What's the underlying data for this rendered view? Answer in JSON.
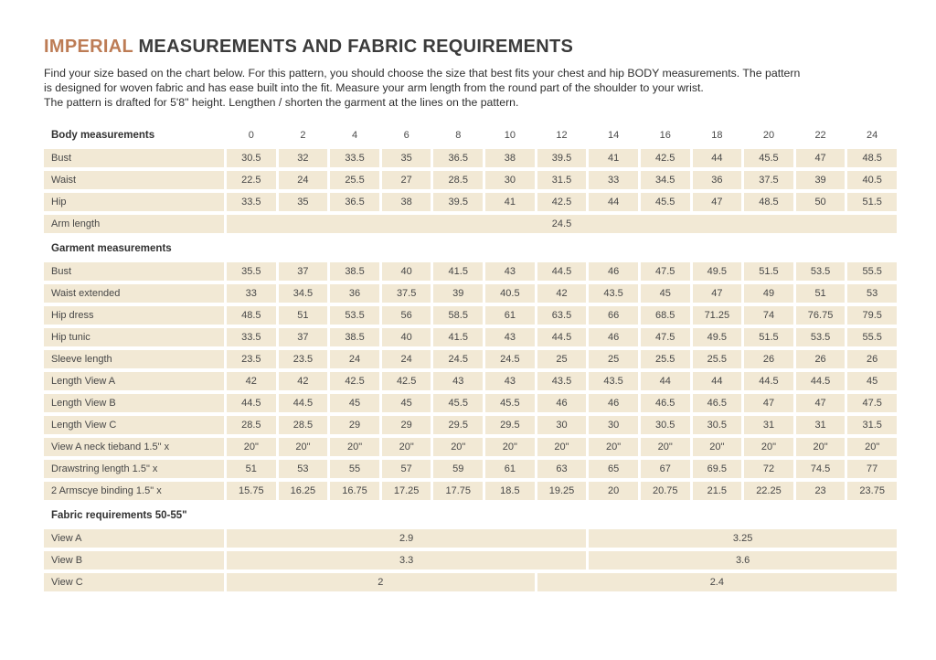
{
  "title": {
    "highlight": "IMPERIAL",
    "rest": "MEASUREMENTS AND FABRIC REQUIREMENTS"
  },
  "intro": {
    "line1": "Find your size based on the chart below. For this pattern, you should choose the size that best fits your chest and hip BODY measurements. The pattern",
    "line2": "is designed for woven fabric and has ease built into the fit. Measure your arm length from the round part of the shoulder to your wrist.",
    "line3": "The pattern is drafted for 5'8\" height. Lengthen / shorten the garment at the lines on the pattern."
  },
  "colors": {
    "accent": "#bd7c55",
    "row_fill": "#f2e9d5",
    "text": "#474747"
  },
  "table": {
    "sizes": [
      "0",
      "2",
      "4",
      "6",
      "8",
      "10",
      "12",
      "14",
      "16",
      "18",
      "20",
      "22",
      "24"
    ],
    "rows": [
      {
        "type": "header",
        "label": "Body measurements",
        "values": [
          "0",
          "2",
          "4",
          "6",
          "8",
          "10",
          "12",
          "14",
          "16",
          "18",
          "20",
          "22",
          "24"
        ]
      },
      {
        "type": "data",
        "label": "Bust",
        "values": [
          "30.5",
          "32",
          "33.5",
          "35",
          "36.5",
          "38",
          "39.5",
          "41",
          "42.5",
          "44",
          "45.5",
          "47",
          "48.5"
        ]
      },
      {
        "type": "data",
        "label": "Waist",
        "values": [
          "22.5",
          "24",
          "25.5",
          "27",
          "28.5",
          "30",
          "31.5",
          "33",
          "34.5",
          "36",
          "37.5",
          "39",
          "40.5"
        ]
      },
      {
        "type": "data",
        "label": "Hip",
        "values": [
          "33.5",
          "35",
          "36.5",
          "38",
          "39.5",
          "41",
          "42.5",
          "44",
          "45.5",
          "47",
          "48.5",
          "50",
          "51.5"
        ]
      },
      {
        "type": "merged",
        "label": "Arm length",
        "value": "24.5",
        "start": 0,
        "span": 13
      },
      {
        "type": "section",
        "label": "Garment measurements"
      },
      {
        "type": "data",
        "label": "Bust",
        "values": [
          "35.5",
          "37",
          "38.5",
          "40",
          "41.5",
          "43",
          "44.5",
          "46",
          "47.5",
          "49.5",
          "51.5",
          "53.5",
          "55.5"
        ]
      },
      {
        "type": "data",
        "label": "Waist extended",
        "values": [
          "33",
          "34.5",
          "36",
          "37.5",
          "39",
          "40.5",
          "42",
          "43.5",
          "45",
          "47",
          "49",
          "51",
          "53"
        ]
      },
      {
        "type": "data",
        "label": "Hip dress",
        "values": [
          "48.5",
          "51",
          "53.5",
          "56",
          "58.5",
          "61",
          "63.5",
          "66",
          "68.5",
          "71.25",
          "74",
          "76.75",
          "79.5"
        ]
      },
      {
        "type": "data",
        "label": "Hip tunic",
        "values": [
          "33.5",
          "37",
          "38.5",
          "40",
          "41.5",
          "43",
          "44.5",
          "46",
          "47.5",
          "49.5",
          "51.5",
          "53.5",
          "55.5"
        ]
      },
      {
        "type": "data",
        "label": "Sleeve length",
        "values": [
          "23.5",
          "23.5",
          "24",
          "24",
          "24.5",
          "24.5",
          "25",
          "25",
          "25.5",
          "25.5",
          "26",
          "26",
          "26"
        ]
      },
      {
        "type": "data",
        "label": "Length View A",
        "values": [
          "42",
          "42",
          "42.5",
          "42.5",
          "43",
          "43",
          "43.5",
          "43.5",
          "44",
          "44",
          "44.5",
          "44.5",
          "45"
        ]
      },
      {
        "type": "data",
        "label": "Length View B",
        "values": [
          "44.5",
          "44.5",
          "45",
          "45",
          "45.5",
          "45.5",
          "46",
          "46",
          "46.5",
          "46.5",
          "47",
          "47",
          "47.5"
        ]
      },
      {
        "type": "data",
        "label": "Length View C",
        "values": [
          "28.5",
          "28.5",
          "29",
          "29",
          "29.5",
          "29.5",
          "30",
          "30",
          "30.5",
          "30.5",
          "31",
          "31",
          "31.5"
        ]
      },
      {
        "type": "data",
        "label": "View A neck tieband 1.5\" x",
        "values": [
          "20\"",
          "20\"",
          "20\"",
          "20\"",
          "20\"",
          "20\"",
          "20\"",
          "20\"",
          "20\"",
          "20\"",
          "20\"",
          "20\"",
          "20\""
        ]
      },
      {
        "type": "data",
        "label": "Drawstring length 1.5\" x",
        "values": [
          "51",
          "53",
          "55",
          "57",
          "59",
          "61",
          "63",
          "65",
          "67",
          "69.5",
          "72",
          "74.5",
          "77"
        ]
      },
      {
        "type": "data",
        "label": "2 Armscye binding 1.5\" x",
        "values": [
          "15.75",
          "16.25",
          "16.75",
          "17.25",
          "17.75",
          "18.5",
          "19.25",
          "20",
          "20.75",
          "21.5",
          "22.25",
          "23",
          "23.75"
        ]
      },
      {
        "type": "section",
        "label": "Fabric requirements 50-55\""
      },
      {
        "type": "split",
        "label": "View A",
        "cells": [
          {
            "value": "2.9",
            "start": 0,
            "span": 7
          },
          {
            "value": "3.25",
            "start": 7,
            "span": 6
          }
        ]
      },
      {
        "type": "split",
        "label": "View B",
        "cells": [
          {
            "value": "3.3",
            "start": 0,
            "span": 7
          },
          {
            "value": "3.6",
            "start": 7,
            "span": 6
          }
        ]
      },
      {
        "type": "split",
        "label": "View C",
        "cells": [
          {
            "value": "2",
            "start": 0,
            "span": 6
          },
          {
            "value": "2.4",
            "start": 6,
            "span": 7
          }
        ]
      }
    ]
  }
}
